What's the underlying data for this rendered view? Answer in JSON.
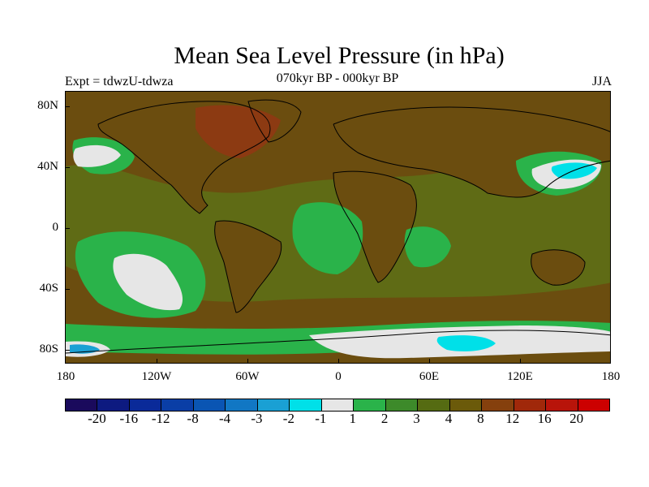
{
  "title": "Mean Sea Level Pressure (in hPa)",
  "subtitle": "070kyr BP - 000kyr BP",
  "left_label": "Expt = tdwzU-tdwza",
  "right_label": "JJA",
  "axes": {
    "y_ticks": [
      "80N",
      "40N",
      "0",
      "40S",
      "80S"
    ],
    "x_ticks": [
      "180",
      "120W",
      "60W",
      "0",
      "60E",
      "120E",
      "180"
    ]
  },
  "colorbar": {
    "labels": [
      "-20",
      "-16",
      "-12",
      "-8",
      "-4",
      "-3",
      "-2",
      "-1",
      "1",
      "2",
      "3",
      "4",
      "8",
      "12",
      "16",
      "20"
    ],
    "colors": [
      "#1a0a5c",
      "#0d1a80",
      "#0a2a99",
      "#0a3ea6",
      "#0a55b3",
      "#1177c4",
      "#1aa0d4",
      "#00e0e8",
      "#e6e6e6",
      "#2ab34a",
      "#3d8a2a",
      "#556b12",
      "#6b5a0a",
      "#85400d",
      "#a0280a",
      "#b8140a",
      "#cc0000"
    ]
  },
  "map_colors": {
    "ocean_base": "#5f6b15",
    "land_base": "#6b4d0f",
    "strong_pos": "#8c3a12",
    "light_green": "#2ab34a",
    "mid_green": "#3d8a2a",
    "near_zero": "#e6e6e6",
    "cyan": "#00e0e8",
    "blue": "#1aa0d4"
  }
}
